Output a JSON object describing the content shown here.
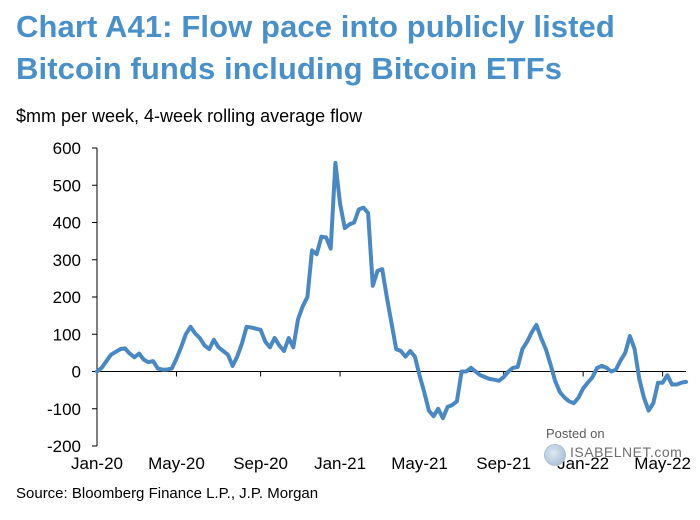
{
  "header": {
    "title": "Chart A41: Flow pace into publicly listed Bitcoin funds including Bitcoin ETFs",
    "units": "$mm per week, 4-week rolling average flow"
  },
  "footer": {
    "source": "Source: Bloomberg Finance L.P., J.P. Morgan"
  },
  "watermark": {
    "posted": "Posted on",
    "site": "ISABELNET.com",
    "icon": "globe-icon"
  },
  "chart_data": {
    "type": "line",
    "title": "Chart A41: Flow pace into publicly listed Bitcoin funds including Bitcoin ETFs",
    "ylabel": "$mm per week, 4-week rolling average flow",
    "xlabel": "",
    "ylim": [
      -200,
      600
    ],
    "yticks": [
      600,
      500,
      400,
      300,
      200,
      100,
      0,
      -100,
      -200
    ],
    "xtick_labels": [
      "Jan-20",
      "May-20",
      "Sep-20",
      "Jan-21",
      "May-21",
      "Sep-21",
      "Jan-22",
      "May-22"
    ],
    "x_range_weeks": [
      0,
      126
    ],
    "xtick_weeks": [
      0,
      17,
      35,
      52,
      69,
      87,
      104,
      121
    ],
    "grid": false,
    "line_color": "#4a88c2",
    "series": [
      {
        "x": [
          0,
          1,
          3,
          5,
          6,
          7,
          8,
          9,
          10,
          11,
          12,
          13,
          14,
          15,
          16,
          17,
          18,
          19,
          20,
          21,
          22,
          23,
          24,
          25,
          26,
          27,
          28,
          29,
          30,
          31,
          32,
          33,
          34,
          35,
          36,
          37,
          38,
          39,
          40,
          41,
          42,
          43,
          44,
          45,
          46,
          47,
          48,
          49,
          50,
          51,
          52,
          53,
          54,
          55,
          56,
          57,
          58,
          59,
          60,
          61,
          62,
          63,
          64,
          65,
          66,
          67,
          68,
          69,
          70,
          71,
          72,
          73,
          74,
          75,
          76,
          77,
          78,
          79,
          80,
          81,
          82,
          83,
          84,
          85,
          86,
          87,
          88,
          89,
          90,
          91,
          92,
          93,
          94,
          95,
          96,
          97,
          98,
          99,
          100,
          101,
          102,
          103,
          104,
          105,
          106,
          107,
          108,
          109,
          110,
          111,
          112,
          113,
          114,
          115,
          116,
          117,
          118,
          119,
          120,
          121,
          122,
          123,
          124,
          125,
          126
        ],
        "values": [
          0,
          10,
          45,
          60,
          62,
          48,
          38,
          48,
          32,
          25,
          28,
          8,
          5,
          5,
          8,
          35,
          65,
          100,
          120,
          102,
          90,
          70,
          60,
          85,
          65,
          55,
          45,
          15,
          40,
          75,
          120,
          118,
          115,
          112,
          80,
          65,
          90,
          70,
          55,
          90,
          65,
          140,
          175,
          200,
          325,
          315,
          362,
          360,
          330,
          560,
          450,
          385,
          395,
          400,
          435,
          440,
          425,
          230,
          270,
          275,
          200,
          130,
          60,
          55,
          40,
          55,
          40,
          -10,
          -55,
          -105,
          -120,
          -100,
          -125,
          -95,
          -90,
          -80,
          0,
          0,
          10,
          0,
          -10,
          -15,
          -20,
          -22,
          -25,
          -15,
          0,
          10,
          12,
          60,
          80,
          105,
          125,
          90,
          60,
          20,
          -25,
          -55,
          -70,
          -80,
          -85,
          -70,
          -45,
          -30,
          -15,
          10,
          15,
          10,
          0,
          5,
          30,
          50,
          95,
          60,
          -20,
          -70,
          -105,
          -85,
          -30,
          -30,
          -10,
          -35,
          -35,
          -30,
          -28
        ]
      }
    ]
  }
}
